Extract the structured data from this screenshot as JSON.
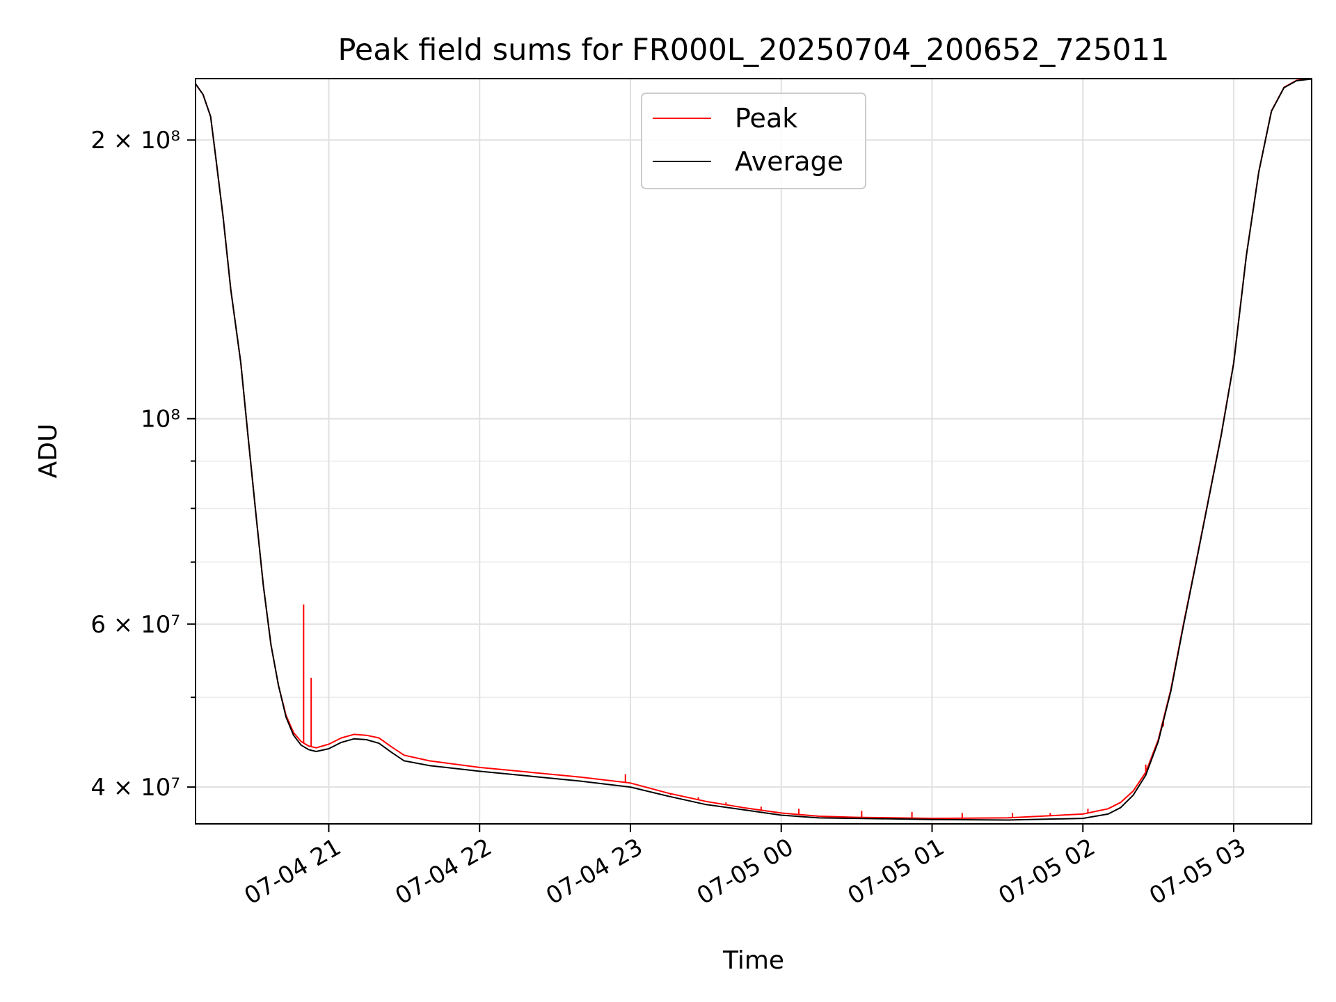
{
  "chart_data": {
    "type": "line",
    "title": "Peak field sums for FR000L_20250704_200652_725011",
    "xlabel": "Time",
    "ylabel": "ADU",
    "yscale": "log",
    "xlim": [
      "2025-07-04 20:07",
      "2025-07-05 03:31"
    ],
    "ylim": [
      36500000,
      233000000
    ],
    "grid": true,
    "legend_position": "top-center",
    "x_ticks": [
      {
        "t": "2025-07-04 21:00",
        "label": "07-04 21"
      },
      {
        "t": "2025-07-04 22:00",
        "label": "07-04 22"
      },
      {
        "t": "2025-07-04 23:00",
        "label": "07-04 23"
      },
      {
        "t": "2025-07-05 00:00",
        "label": "07-05 00"
      },
      {
        "t": "2025-07-05 01:00",
        "label": "07-05 01"
      },
      {
        "t": "2025-07-05 02:00",
        "label": "07-05 02"
      },
      {
        "t": "2025-07-05 03:00",
        "label": "07-05 03"
      }
    ],
    "y_ticks_major": [
      {
        "value": 40000000,
        "label": "4 × 10⁷"
      },
      {
        "value": 60000000,
        "label": "6 × 10⁷"
      },
      {
        "value": 100000000,
        "label": "10⁸"
      },
      {
        "value": 200000000,
        "label": "2 × 10⁸"
      }
    ],
    "y_ticks_minor": [
      50000000,
      70000000,
      80000000,
      90000000
    ],
    "series": [
      {
        "name": "Peak",
        "color": "#ff0000",
        "x": [
          "2025-07-04 20:07",
          "2025-07-04 20:10",
          "2025-07-04 20:13",
          "2025-07-04 20:15",
          "2025-07-04 20:18",
          "2025-07-04 20:21",
          "2025-07-04 20:25",
          "2025-07-04 20:28",
          "2025-07-04 20:31",
          "2025-07-04 20:34",
          "2025-07-04 20:37",
          "2025-07-04 20:40",
          "2025-07-04 20:43",
          "2025-07-04 20:46",
          "2025-07-04 20:49",
          "2025-07-04 20:52",
          "2025-07-04 20:55",
          "2025-07-04 21:00",
          "2025-07-04 21:05",
          "2025-07-04 21:10",
          "2025-07-04 21:15",
          "2025-07-04 21:20",
          "2025-07-04 21:25",
          "2025-07-04 21:30",
          "2025-07-04 21:40",
          "2025-07-04 22:00",
          "2025-07-04 22:20",
          "2025-07-04 22:40",
          "2025-07-04 23:00",
          "2025-07-04 23:15",
          "2025-07-04 23:30",
          "2025-07-04 23:45",
          "2025-07-05 00:00",
          "2025-07-05 00:15",
          "2025-07-05 00:30",
          "2025-07-05 01:00",
          "2025-07-05 01:30",
          "2025-07-05 02:00",
          "2025-07-05 02:10",
          "2025-07-05 02:15",
          "2025-07-05 02:20",
          "2025-07-05 02:25",
          "2025-07-05 02:30",
          "2025-07-05 02:35",
          "2025-07-05 02:40",
          "2025-07-05 02:45",
          "2025-07-05 02:50",
          "2025-07-05 02:55",
          "2025-07-05 03:00",
          "2025-07-05 03:05",
          "2025-07-05 03:10",
          "2025-07-05 03:15",
          "2025-07-05 03:20",
          "2025-07-05 03:25",
          "2025-07-05 03:31"
        ],
        "y": [
          230000000,
          224000000,
          212000000,
          192000000,
          165000000,
          138000000,
          115000000,
          95000000,
          79000000,
          66000000,
          57000000,
          51500000,
          47800000,
          45800000,
          44800000,
          44300000,
          44100000,
          44500000,
          45200000,
          45600000,
          45500000,
          45200000,
          44200000,
          43300000,
          42700000,
          42000000,
          41500000,
          41000000,
          40400000,
          39400000,
          38600000,
          38000000,
          37500000,
          37200000,
          37100000,
          37000000,
          37050000,
          37400000,
          37900000,
          38500000,
          39600000,
          41500000,
          45000000,
          51000000,
          60000000,
          70000000,
          82000000,
          96000000,
          115000000,
          150000000,
          185000000,
          215000000,
          228000000,
          232000000,
          233000000
        ],
        "spikes": [
          {
            "t": "2025-07-04 20:53",
            "value": 52500000
          },
          {
            "t": "2025-07-04 20:50",
            "value": 63000000
          },
          {
            "t": "2025-07-04 22:58",
            "value": 41300000
          },
          {
            "t": "2025-07-04 23:16",
            "value": 39200000
          },
          {
            "t": "2025-07-04 23:27",
            "value": 39000000
          },
          {
            "t": "2025-07-04 23:38",
            "value": 38500000
          },
          {
            "t": "2025-07-04 23:52",
            "value": 38100000
          },
          {
            "t": "2025-07-05 00:07",
            "value": 37900000
          },
          {
            "t": "2025-07-05 00:32",
            "value": 37700000
          },
          {
            "t": "2025-07-05 00:52",
            "value": 37600000
          },
          {
            "t": "2025-07-05 01:12",
            "value": 37500000
          },
          {
            "t": "2025-07-05 01:32",
            "value": 37500000
          },
          {
            "t": "2025-07-05 01:47",
            "value": 37500000
          },
          {
            "t": "2025-07-05 02:02",
            "value": 37900000
          },
          {
            "t": "2025-07-05 02:25",
            "value": 42300000
          },
          {
            "t": "2025-07-05 02:32",
            "value": 46500000
          }
        ]
      },
      {
        "name": "Average",
        "color": "#000000",
        "x": [
          "2025-07-04 20:07",
          "2025-07-04 20:10",
          "2025-07-04 20:13",
          "2025-07-04 20:15",
          "2025-07-04 20:18",
          "2025-07-04 20:21",
          "2025-07-04 20:25",
          "2025-07-04 20:28",
          "2025-07-04 20:31",
          "2025-07-04 20:34",
          "2025-07-04 20:37",
          "2025-07-04 20:40",
          "2025-07-04 20:43",
          "2025-07-04 20:46",
          "2025-07-04 20:49",
          "2025-07-04 20:52",
          "2025-07-04 20:55",
          "2025-07-04 21:00",
          "2025-07-04 21:05",
          "2025-07-04 21:10",
          "2025-07-04 21:15",
          "2025-07-04 21:20",
          "2025-07-04 21:25",
          "2025-07-04 21:30",
          "2025-07-04 21:40",
          "2025-07-04 22:00",
          "2025-07-04 22:20",
          "2025-07-04 22:40",
          "2025-07-04 23:00",
          "2025-07-04 23:15",
          "2025-07-04 23:30",
          "2025-07-04 23:45",
          "2025-07-05 00:00",
          "2025-07-05 00:15",
          "2025-07-05 00:30",
          "2025-07-05 01:00",
          "2025-07-05 01:30",
          "2025-07-05 02:00",
          "2025-07-05 02:10",
          "2025-07-05 02:15",
          "2025-07-05 02:20",
          "2025-07-05 02:25",
          "2025-07-05 02:30",
          "2025-07-05 02:35",
          "2025-07-05 02:40",
          "2025-07-05 02:45",
          "2025-07-05 02:50",
          "2025-07-05 02:55",
          "2025-07-05 03:00",
          "2025-07-05 03:05",
          "2025-07-05 03:10",
          "2025-07-05 03:15",
          "2025-07-05 03:20",
          "2025-07-05 03:25",
          "2025-07-05 03:31"
        ],
        "y": [
          230000000,
          224000000,
          212000000,
          192000000,
          165000000,
          138000000,
          115000000,
          95000000,
          79000000,
          66000000,
          57000000,
          51500000,
          47600000,
          45500000,
          44400000,
          43900000,
          43700000,
          44000000,
          44700000,
          45100000,
          45000000,
          44600000,
          43600000,
          42700000,
          42200000,
          41600000,
          41100000,
          40600000,
          40000000,
          39100000,
          38300000,
          37800000,
          37300000,
          37050000,
          37000000,
          36900000,
          36850000,
          37000000,
          37400000,
          38000000,
          39200000,
          41200000,
          44800000,
          50800000,
          59800000,
          69800000,
          81800000,
          95800000,
          114800000,
          149800000,
          184800000,
          214800000,
          227800000,
          231800000,
          232800000
        ]
      }
    ]
  }
}
